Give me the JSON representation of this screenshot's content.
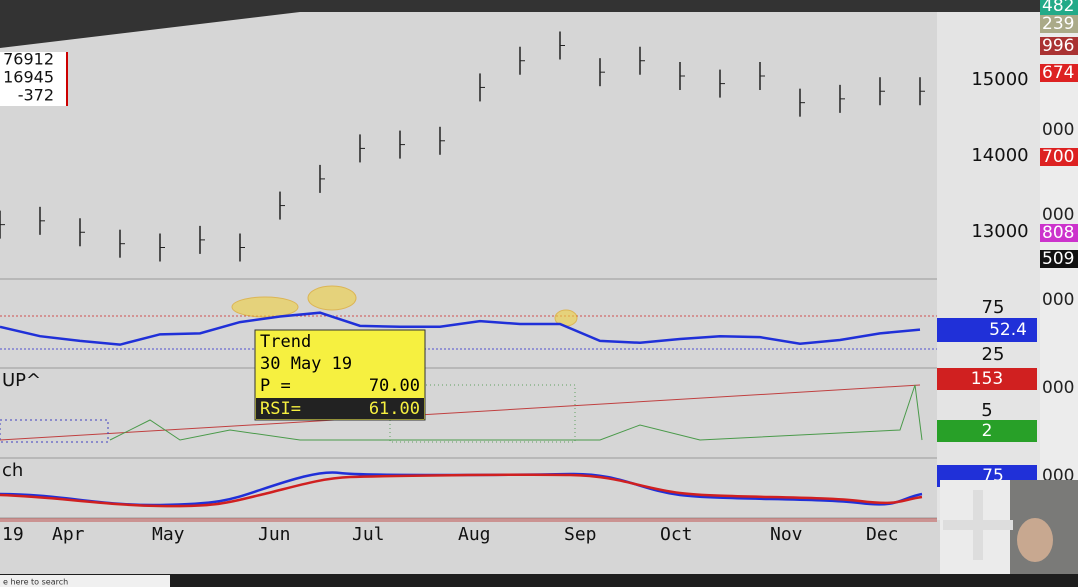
{
  "info_box": [
    "76912",
    "16945",
    "-372"
  ],
  "price_panel": {
    "axis_labels": [
      "15000",
      "14000",
      "13000"
    ],
    "ylim": [
      12400,
      15850
    ],
    "values": [
      13100,
      13150,
      13000,
      12850,
      12800,
      12900,
      12800,
      13350,
      13700,
      14100,
      14150,
      14200,
      14900,
      15250,
      15450,
      15100,
      15250,
      15050,
      14950,
      15050,
      14700,
      14750,
      14850,
      14850
    ]
  },
  "rsi_panel": {
    "axis_labels": [
      "75",
      "25"
    ],
    "badge": "52.4",
    "values": [
      55,
      45,
      40,
      36,
      47,
      48,
      60,
      66,
      70,
      56,
      55,
      55,
      61,
      58,
      58,
      40,
      38,
      42,
      45,
      44,
      37,
      41,
      48,
      52
    ]
  },
  "up_panel": {
    "label": "UP^",
    "badge_red": "153",
    "axis_label": "5",
    "badge_green": "2"
  },
  "stoch_panel": {
    "label": "ch",
    "badge": "75"
  },
  "months": [
    "19",
    "Apr",
    "May",
    "Jun",
    "Jul",
    "Aug",
    "Sep",
    "Oct",
    "Nov",
    "Dec"
  ],
  "far_values": [
    {
      "text": "482",
      "color": "#2a8"
    },
    {
      "text": "239",
      "color": "#aa8"
    },
    {
      "text": "996",
      "color": "#a33"
    },
    {
      "text": "674",
      "color": "#d22"
    },
    {
      "text": "000",
      "color": "#222"
    },
    {
      "text": "700",
      "color": "#d22"
    },
    {
      "text": "000",
      "color": "#222"
    },
    {
      "text": "808",
      "color": "#c3c"
    },
    {
      "text": "509",
      "color": "#111"
    },
    {
      "text": "000",
      "color": "#222"
    },
    {
      "text": "000",
      "color": "#222"
    },
    {
      "text": "000",
      "color": "#222"
    }
  ],
  "tooltip": {
    "title": "Trend",
    "date": "30 May 19",
    "p_label": "P   =",
    "p_value": "70.00",
    "rsi_label": "RSI=",
    "rsi_value": "61.00"
  },
  "taskbar": {
    "search": "e here to search"
  }
}
